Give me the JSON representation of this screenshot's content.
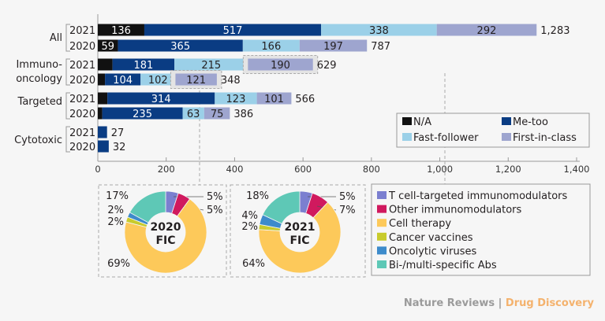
{
  "chart_data": [
    {
      "type": "bar",
      "orientation": "horizontal",
      "stacked": true,
      "groups": [
        {
          "label": "All",
          "rows": [
            {
              "year": "2021",
              "values": [
                136,
                517,
                338,
                292
              ],
              "total": "1,283"
            },
            {
              "year": "2020",
              "values": [
                59,
                365,
                166,
                197
              ],
              "total": "787"
            }
          ]
        },
        {
          "label": "Immuno-oncology",
          "label_lines": [
            "Immuno-",
            "oncology"
          ],
          "rows": [
            {
              "year": "2021",
              "values": [
                43,
                181,
                215,
                190
              ],
              "total": "629"
            },
            {
              "year": "2020",
              "values": [
                21,
                104,
                102,
                121
              ],
              "total": "348"
            }
          ]
        },
        {
          "label": "Targeted",
          "rows": [
            {
              "year": "2021",
              "values": [
                28,
                314,
                123,
                101
              ],
              "total": "566"
            },
            {
              "year": "2020",
              "values": [
                13,
                235,
                63,
                75
              ],
              "total": "386"
            }
          ]
        },
        {
          "label": "Cytotoxic",
          "rows": [
            {
              "year": "2021",
              "values": [
                0,
                27,
                0,
                0
              ],
              "total": "27"
            },
            {
              "year": "2020",
              "values": [
                0,
                32,
                0,
                0
              ],
              "total": "32"
            }
          ]
        }
      ],
      "segment_labels_shown": {
        "All-2021": [
          "136",
          "517",
          "338",
          "292"
        ],
        "All-2020": [
          "59",
          "365",
          "166",
          "197"
        ],
        "Immuno-oncology-2021": [
          "",
          "181",
          "215",
          "190"
        ],
        "Immuno-oncology-2020": [
          "",
          "104",
          "102",
          "121"
        ],
        "Targeted-2021": [
          "",
          "314",
          "123",
          "101"
        ],
        "Targeted-2020": [
          "",
          "235",
          "63",
          "75"
        ],
        "Cytotoxic-2021": [
          "",
          "",
          "",
          ""
        ],
        "Cytotoxic-2020": [
          "",
          "",
          "",
          ""
        ]
      },
      "series": [
        {
          "name": "N/A",
          "color": "#111111"
        },
        {
          "name": "Me-too",
          "color": "#0a3c83"
        },
        {
          "name": "Fast-follower",
          "color": "#9bd0e8"
        },
        {
          "name": "First-in-class",
          "color": "#9ea5cf"
        }
      ],
      "xlim": [
        0,
        1400
      ],
      "xticks": [
        "0",
        "200",
        "400",
        "600",
        "800",
        "1,000",
        "1,200",
        "1,400"
      ],
      "xtick_values": [
        0,
        200,
        400,
        600,
        800,
        1000,
        1200,
        1400
      ],
      "legend": "right, below bars",
      "highlighted": [
        "Immuno-oncology-2020 First-in-class",
        "Immuno-oncology-2021 First-in-class"
      ]
    },
    {
      "type": "pie",
      "style": "donut",
      "center_label": [
        "2020",
        "FIC"
      ],
      "slices": [
        {
          "name": "T cell-targeted immunomodulators",
          "value": 5,
          "label": "5%"
        },
        {
          "name": "Other immunomodulators",
          "value": 5,
          "label": "5%"
        },
        {
          "name": "Cell therapy",
          "value": 69,
          "label": "69%"
        },
        {
          "name": "Cancer vaccines",
          "value": 2,
          "label": "2%"
        },
        {
          "name": "Oncolytic viruses",
          "value": 2,
          "label": "2%"
        },
        {
          "name": "Bi-/multi-specific Abs",
          "value": 17,
          "label": "17%"
        }
      ]
    },
    {
      "type": "pie",
      "style": "donut",
      "center_label": [
        "2021",
        "FIC"
      ],
      "slices": [
        {
          "name": "T cell-targeted immunomodulators",
          "value": 5,
          "label": "5%"
        },
        {
          "name": "Other immunomodulators",
          "value": 7,
          "label": "7%"
        },
        {
          "name": "Cell therapy",
          "value": 64,
          "label": "64%"
        },
        {
          "name": "Cancer vaccines",
          "value": 2,
          "label": "2%"
        },
        {
          "name": "Oncolytic viruses",
          "value": 4,
          "label": "4%"
        },
        {
          "name": "Bi-/multi-specific Abs",
          "value": 18,
          "label": "18%"
        }
      ]
    }
  ],
  "pie_legend": [
    {
      "name": "T cell-targeted immunomodulators",
      "color": "#7b7fd0"
    },
    {
      "name": "Other immunomodulators",
      "color": "#d0195e"
    },
    {
      "name": "Cell therapy",
      "color": "#fdc95a"
    },
    {
      "name": "Cancer vaccines",
      "color": "#c8cb2c"
    },
    {
      "name": "Oncolytic viruses",
      "color": "#3d8bcb"
    },
    {
      "name": "Bi-/multi-specific Abs",
      "color": "#5ec8b6"
    }
  ],
  "credit": {
    "journal": "Nature Reviews",
    "separator": " | ",
    "section": "Drug Discovery"
  }
}
